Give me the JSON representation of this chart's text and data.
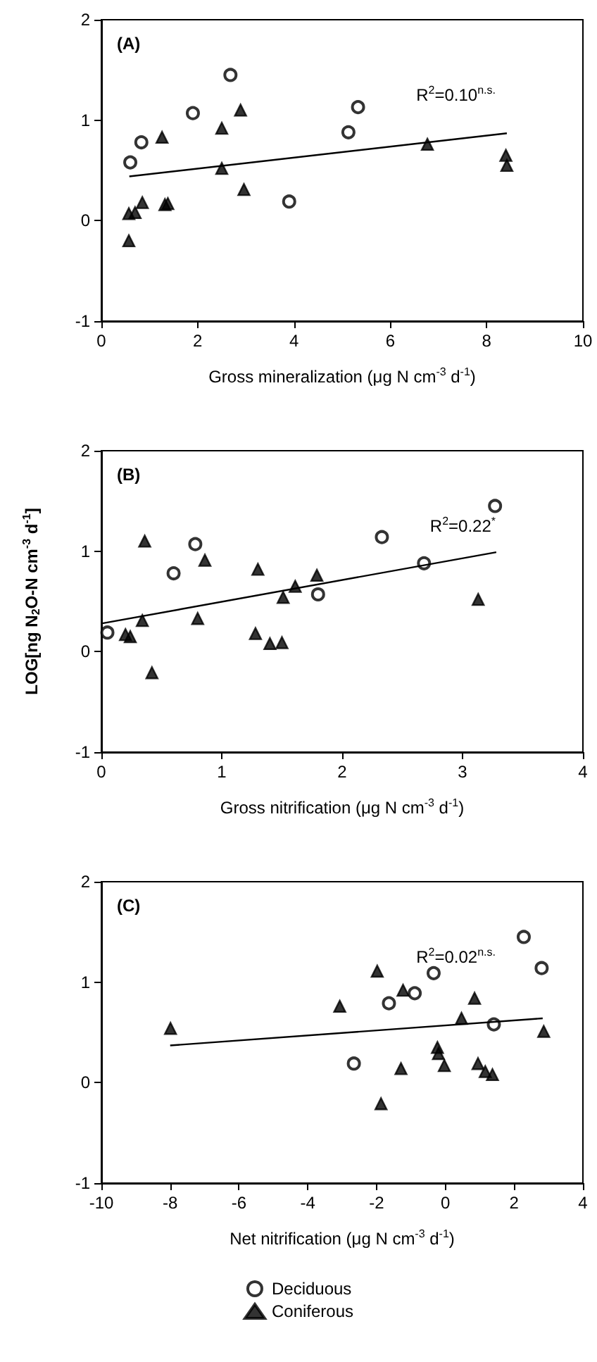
{
  "chart_data": [
    {
      "type": "scatter",
      "title": "(A)",
      "xlabel": "Gross mineralization (μg N cm$^{-3}$ d$^{-1}$)",
      "xlim": [
        0,
        10
      ],
      "xticks": [
        0,
        2,
        4,
        6,
        8,
        10
      ],
      "ylim": [
        -1,
        2
      ],
      "yticks": [
        -1,
        0,
        1,
        2
      ],
      "grid": false,
      "legend": false,
      "annotations": [
        "R$^{2}$=0.10$^{n.s.}$"
      ],
      "series": [
        {
          "color": "#000000",
          "marker": "circle",
          "x": [
            0.6,
            0.83,
            1.9,
            2.68,
            3.9,
            5.13,
            5.33
          ],
          "values": [
            0.58,
            0.78,
            1.07,
            1.45,
            0.19,
            0.88,
            1.13
          ]
        },
        {
          "color": "#000000",
          "marker": "triangle",
          "x": [
            0.57,
            0.57,
            0.7,
            0.85,
            1.26,
            1.32,
            1.38,
            2.5,
            2.5,
            2.89,
            2.96,
            6.77,
            8.4,
            8.42
          ],
          "values": [
            -0.2,
            0.07,
            0.08,
            0.18,
            0.83,
            0.16,
            0.17,
            0.92,
            0.52,
            1.1,
            0.31,
            0.76,
            0.65,
            0.55
          ]
        },
        {
          "type": "line",
          "color": "#000000",
          "marker": "none",
          "x": [
            0.58,
            8.42
          ],
          "values": [
            0.44,
            0.87
          ]
        }
      ]
    },
    {
      "type": "scatter",
      "title": "(B)",
      "xlabel": "Gross nitrification (μg N cm$^{-3}$ d$^{-1}$)",
      "ylabel": "LOG[ng N$_{2}$O-N cm$^{-3}$ d$^{-1}$]",
      "xlim": [
        0,
        4
      ],
      "xticks": [
        0,
        1,
        2,
        3,
        4
      ],
      "ylim": [
        -1,
        2
      ],
      "yticks": [
        -1,
        0,
        1,
        2
      ],
      "grid": false,
      "legend": false,
      "annotations": [
        "R$^{2}$=0.22$^{*}$"
      ],
      "series": [
        {
          "color": "#000000",
          "marker": "circle",
          "x": [
            0.05,
            0.6,
            0.78,
            1.8,
            2.33,
            2.68,
            3.27
          ],
          "values": [
            0.19,
            0.78,
            1.07,
            0.57,
            1.14,
            0.88,
            1.45
          ]
        },
        {
          "color": "#000000",
          "marker": "triangle",
          "x": [
            0.36,
            0.86,
            1.3,
            1.51,
            1.61,
            1.79,
            0.8,
            0.34,
            0.2,
            0.24,
            0.42,
            1.28,
            1.4,
            1.5,
            3.13
          ],
          "values": [
            1.1,
            0.91,
            0.82,
            0.54,
            0.65,
            0.76,
            0.33,
            0.31,
            0.17,
            0.15,
            -0.21,
            0.18,
            0.08,
            0.09,
            0.52
          ]
        },
        {
          "type": "line",
          "color": "#000000",
          "marker": "none",
          "x": [
            0,
            3.28
          ],
          "values": [
            0.28,
            0.99
          ]
        }
      ]
    },
    {
      "type": "scatter",
      "title": "(C)",
      "xlabel": "Net nitrification (μg N cm$^{-3}$ d$^{-1}$)",
      "xlim": [
        -10,
        4
      ],
      "xticks": [
        -10,
        -8,
        -6,
        -4,
        -2,
        0,
        2,
        4
      ],
      "ylim": [
        -1,
        2
      ],
      "yticks": [
        -1,
        0,
        1,
        2
      ],
      "grid": false,
      "legend": "bottom",
      "annotations": [
        "R$^{2}$=0.02$^{n.s.}$"
      ],
      "series": [
        {
          "name": "Deciduous",
          "color": "#000000",
          "marker": "circle",
          "x": [
            -1.64,
            -0.89,
            -0.34,
            2.28,
            2.8,
            1.41,
            -2.66
          ],
          "values": [
            0.79,
            0.89,
            1.09,
            1.45,
            1.14,
            0.58,
            0.19
          ]
        },
        {
          "name": "Coniferous",
          "color": "#000000",
          "marker": "triangle",
          "x": [
            -7.99,
            -3.07,
            -1.98,
            -1.23,
            0.47,
            0.85,
            2.86,
            -0.23,
            -0.2,
            -0.03,
            -1.29,
            0.95,
            1.16,
            1.37,
            -1.87
          ],
          "values": [
            0.54,
            0.76,
            1.11,
            0.92,
            0.64,
            0.84,
            0.51,
            0.35,
            0.29,
            0.17,
            0.14,
            0.19,
            0.11,
            0.08,
            -0.21
          ]
        },
        {
          "type": "line",
          "color": "#000000",
          "marker": "none",
          "x": [
            -8,
            2.83
          ],
          "values": [
            0.37,
            0.64
          ]
        }
      ]
    }
  ]
}
